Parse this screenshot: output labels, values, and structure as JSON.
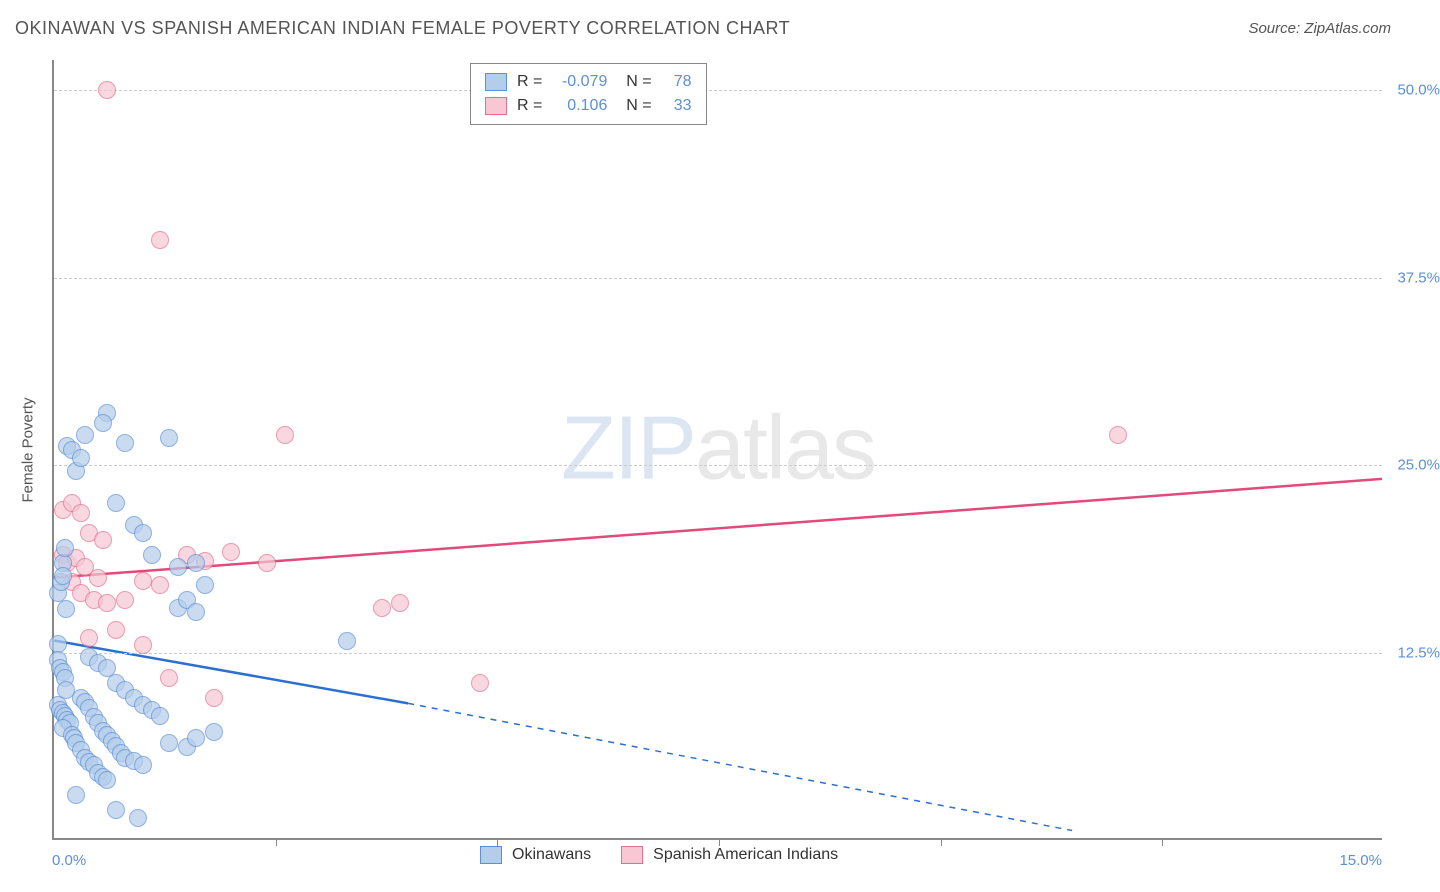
{
  "header": {
    "title": "OKINAWAN VS SPANISH AMERICAN INDIAN FEMALE POVERTY CORRELATION CHART",
    "source": "Source: ZipAtlas.com"
  },
  "axes": {
    "y_title": "Female Poverty",
    "x_min": 0.0,
    "x_max": 15.0,
    "y_min": 0.0,
    "y_max": 52.0,
    "y_ticks": [
      {
        "v": 12.5,
        "label": "12.5%"
      },
      {
        "v": 25.0,
        "label": "25.0%"
      },
      {
        "v": 37.5,
        "label": "37.5%"
      },
      {
        "v": 50.0,
        "label": "50.0%"
      }
    ],
    "x_tick_positions": [
      2.5,
      5.0,
      7.5,
      10.0,
      12.5
    ],
    "x_left_label": "0.0%",
    "x_right_label": "15.0%"
  },
  "watermark": {
    "bold": "ZIP",
    "light": "atlas"
  },
  "series": {
    "okinawans": {
      "label": "Okinawans",
      "fill": "#b4cdeb",
      "stroke": "#5b8fd6",
      "marker_radius": 9,
      "opacity": 0.7,
      "r": "-0.079",
      "n": "78",
      "trend": {
        "from_x": 0.0,
        "from_y": 13.2,
        "solid_to_x": 4.0,
        "solid_to_y": 9.0,
        "to_x": 11.5,
        "to_y": 0.5,
        "stroke": "#2d6fd0",
        "width": 2.5
      },
      "points": [
        [
          0.05,
          16.5
        ],
        [
          0.08,
          17.2
        ],
        [
          0.1,
          18.5
        ],
        [
          0.1,
          17.6
        ],
        [
          0.12,
          19.5
        ],
        [
          0.14,
          15.4
        ],
        [
          0.05,
          13.1
        ],
        [
          0.05,
          12.0
        ],
        [
          0.07,
          11.5
        ],
        [
          0.1,
          11.2
        ],
        [
          0.12,
          10.8
        ],
        [
          0.14,
          10.0
        ],
        [
          0.05,
          9.0
        ],
        [
          0.07,
          8.7
        ],
        [
          0.1,
          8.5
        ],
        [
          0.12,
          8.3
        ],
        [
          0.15,
          8.0
        ],
        [
          0.18,
          7.8
        ],
        [
          0.1,
          7.5
        ],
        [
          0.2,
          7.0
        ],
        [
          0.22,
          6.8
        ],
        [
          0.25,
          6.5
        ],
        [
          0.3,
          6.0
        ],
        [
          0.35,
          5.5
        ],
        [
          0.4,
          5.2
        ],
        [
          0.45,
          5.0
        ],
        [
          0.5,
          4.5
        ],
        [
          0.55,
          4.2
        ],
        [
          0.6,
          4.0
        ],
        [
          0.3,
          9.5
        ],
        [
          0.35,
          9.2
        ],
        [
          0.4,
          8.8
        ],
        [
          0.45,
          8.2
        ],
        [
          0.5,
          7.8
        ],
        [
          0.55,
          7.3
        ],
        [
          0.6,
          7.0
        ],
        [
          0.65,
          6.6
        ],
        [
          0.7,
          6.3
        ],
        [
          0.75,
          5.8
        ],
        [
          0.8,
          5.5
        ],
        [
          0.9,
          5.3
        ],
        [
          1.0,
          5.0
        ],
        [
          0.15,
          26.3
        ],
        [
          0.2,
          26.0
        ],
        [
          0.25,
          24.6
        ],
        [
          0.3,
          25.5
        ],
        [
          0.35,
          27.0
        ],
        [
          0.6,
          28.5
        ],
        [
          0.55,
          27.8
        ],
        [
          0.7,
          22.5
        ],
        [
          0.8,
          26.5
        ],
        [
          1.3,
          26.8
        ],
        [
          0.4,
          12.2
        ],
        [
          0.5,
          11.8
        ],
        [
          0.6,
          11.5
        ],
        [
          0.7,
          10.5
        ],
        [
          0.8,
          10.0
        ],
        [
          0.9,
          9.5
        ],
        [
          1.0,
          9.0
        ],
        [
          1.1,
          8.7
        ],
        [
          1.2,
          8.3
        ],
        [
          1.4,
          15.5
        ],
        [
          1.5,
          16.0
        ],
        [
          1.6,
          15.2
        ],
        [
          0.9,
          21.0
        ],
        [
          1.0,
          20.5
        ],
        [
          1.1,
          19.0
        ],
        [
          1.4,
          18.2
        ],
        [
          1.6,
          18.5
        ],
        [
          1.7,
          17.0
        ],
        [
          1.3,
          6.5
        ],
        [
          1.5,
          6.2
        ],
        [
          1.6,
          6.8
        ],
        [
          1.8,
          7.2
        ],
        [
          3.3,
          13.3
        ],
        [
          0.25,
          3.0
        ],
        [
          0.7,
          2.0
        ],
        [
          0.95,
          1.5
        ]
      ]
    },
    "spanish": {
      "label": "Spanish American Indians",
      "fill": "#f7c7d3",
      "stroke": "#e36f8f",
      "marker_radius": 9,
      "opacity": 0.7,
      "r": "0.106",
      "n": "33",
      "trend": {
        "from_x": 0.0,
        "from_y": 17.4,
        "to_x": 15.0,
        "to_y": 24.0,
        "stroke": "#e24b79",
        "width": 2.5
      },
      "points": [
        [
          0.6,
          50.0
        ],
        [
          1.2,
          40.0
        ],
        [
          2.6,
          27.0
        ],
        [
          12.0,
          27.0
        ],
        [
          0.1,
          22.0
        ],
        [
          0.2,
          22.5
        ],
        [
          0.3,
          21.8
        ],
        [
          0.4,
          20.5
        ],
        [
          0.55,
          20.0
        ],
        [
          0.1,
          19.0
        ],
        [
          0.15,
          18.5
        ],
        [
          0.25,
          18.8
        ],
        [
          0.35,
          18.2
        ],
        [
          0.5,
          17.5
        ],
        [
          0.2,
          17.2
        ],
        [
          0.3,
          16.5
        ],
        [
          0.45,
          16.0
        ],
        [
          0.6,
          15.8
        ],
        [
          0.8,
          16.0
        ],
        [
          1.0,
          17.3
        ],
        [
          1.2,
          17.0
        ],
        [
          1.5,
          19.0
        ],
        [
          1.7,
          18.6
        ],
        [
          2.0,
          19.2
        ],
        [
          2.4,
          18.5
        ],
        [
          0.4,
          13.5
        ],
        [
          0.7,
          14.0
        ],
        [
          1.0,
          13.0
        ],
        [
          1.3,
          10.8
        ],
        [
          1.8,
          9.5
        ],
        [
          3.7,
          15.5
        ],
        [
          3.9,
          15.8
        ],
        [
          4.8,
          10.5
        ]
      ]
    }
  }
}
